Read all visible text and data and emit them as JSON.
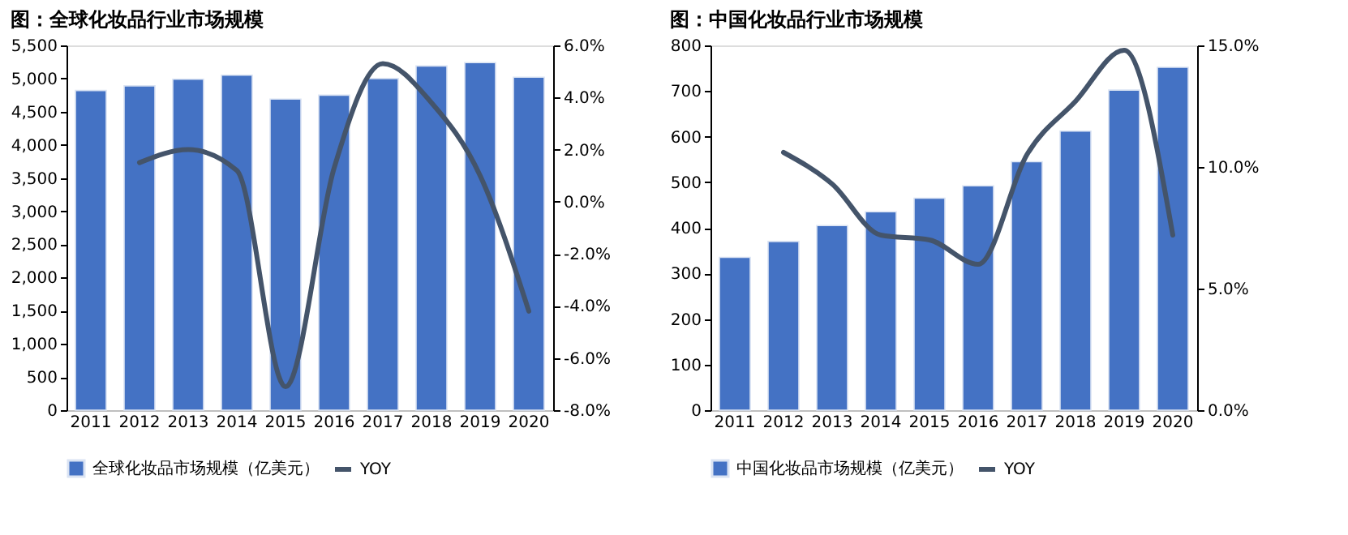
{
  "chart_data": [
    {
      "type": "bar",
      "title": "图：全球化妆品行业市场规模",
      "categories": [
        "2011",
        "2012",
        "2013",
        "2014",
        "2015",
        "2016",
        "2017",
        "2018",
        "2019",
        "2020"
      ],
      "series": [
        {
          "name": "全球化妆品市场规模（亿美元）",
          "type": "bar",
          "color": "#4472c4",
          "values": [
            4820,
            4890,
            4990,
            5050,
            4690,
            4750,
            5000,
            5190,
            5240,
            5020
          ]
        },
        {
          "name": "YOY",
          "type": "line",
          "axis": "y2",
          "color": "#44546a",
          "values": [
            null,
            1.5,
            2.0,
            1.2,
            -7.1,
            1.3,
            5.3,
            3.8,
            1.0,
            -4.2
          ]
        }
      ],
      "ylim": [
        0,
        5500
      ],
      "yticks": [
        0,
        500,
        {
          "value": 1000,
          "label": "1,000"
        },
        {
          "value": 1500,
          "label": "1,500"
        },
        {
          "value": 2000,
          "label": "2,000"
        },
        {
          "value": 2500,
          "label": "2,500"
        },
        {
          "value": 3000,
          "label": "3,000"
        },
        {
          "value": 3500,
          "label": "3,500"
        },
        {
          "value": 4000,
          "label": "4,000"
        },
        {
          "value": 4500,
          "label": "4,500"
        },
        {
          "value": 5000,
          "label": "5,000"
        },
        {
          "value": 5500,
          "label": "5,500"
        }
      ],
      "y2lim": [
        -8,
        6
      ],
      "y2ticks": [
        {
          "value": -8,
          "label": "-8.0%"
        },
        {
          "value": -6,
          "label": "-6.0%"
        },
        {
          "value": -4,
          "label": "-4.0%"
        },
        {
          "value": -2,
          "label": "-2.0%"
        },
        {
          "value": 0,
          "label": "0.0%"
        },
        {
          "value": 2,
          "label": "2.0%"
        },
        {
          "value": 4,
          "label": "4.0%"
        },
        {
          "value": 6,
          "label": "6.0%"
        }
      ],
      "legend": "bottom",
      "grid": false
    },
    {
      "type": "bar",
      "title": "图：中国化妆品行业市场规模",
      "categories": [
        "2011",
        "2012",
        "2013",
        "2014",
        "2015",
        "2016",
        "2017",
        "2018",
        "2019",
        "2020"
      ],
      "series": [
        {
          "name": "中国化妆品市场规模（亿美元）",
          "type": "bar",
          "color": "#4472c4",
          "values": [
            335,
            370,
            405,
            435,
            465,
            492,
            545,
            612,
            702,
            752
          ]
        },
        {
          "name": "YOY",
          "type": "line",
          "axis": "y2",
          "color": "#44546a",
          "values": [
            null,
            10.6,
            9.3,
            7.2,
            7.0,
            6.0,
            10.5,
            12.7,
            14.8,
            7.2
          ]
        }
      ],
      "ylim": [
        0,
        800
      ],
      "yticks": [
        0,
        100,
        200,
        300,
        400,
        500,
        600,
        700,
        800
      ],
      "y2lim": [
        0,
        15
      ],
      "y2ticks": [
        {
          "value": 0,
          "label": "0.0%"
        },
        {
          "value": 5,
          "label": "5.0%"
        },
        {
          "value": 10,
          "label": "10.0%"
        },
        {
          "value": 15,
          "label": "15.0%"
        }
      ],
      "legend": "bottom",
      "grid": false
    }
  ]
}
